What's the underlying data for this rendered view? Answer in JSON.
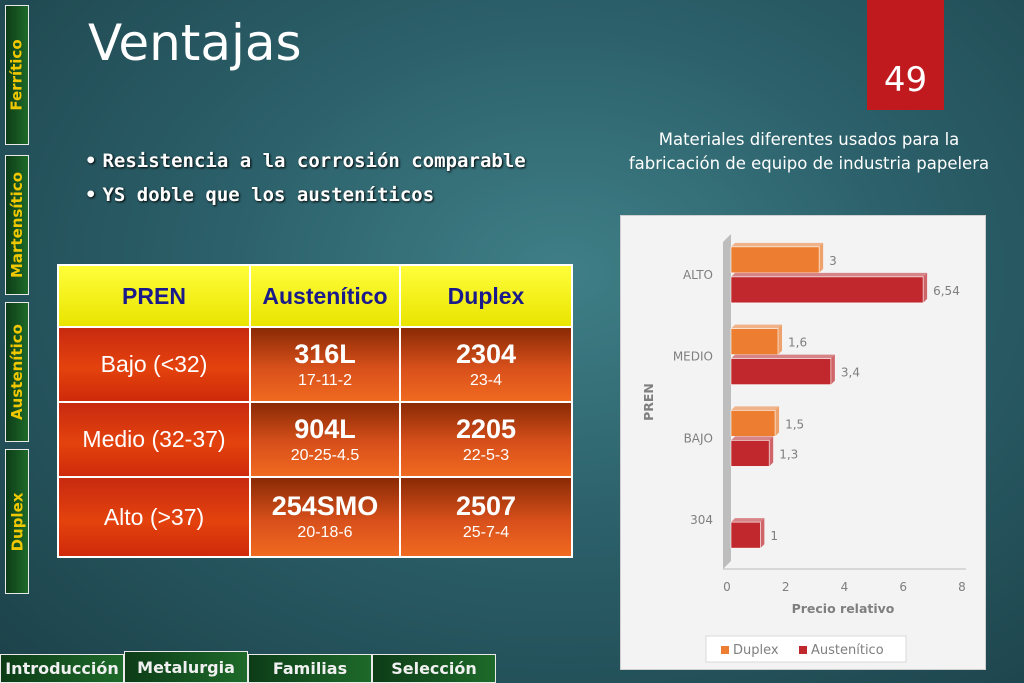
{
  "side_tabs": [
    "Ferrítico",
    "Martensítico",
    "Austenítico",
    "Duplex"
  ],
  "title": "Ventajas",
  "page_number": "49",
  "bullets": [
    "Resistencia a la corrosión comparable",
    "YS doble que los austeníticos"
  ],
  "bullet_char": "•",
  "table": {
    "headers": [
      "PREN",
      "Austenítico",
      "Duplex"
    ],
    "rows": [
      {
        "label": "Bajo (<32)",
        "aus_grade": "316L",
        "aus_comp": "17-11-2",
        "dup_grade": "2304",
        "dup_comp": "23-4"
      },
      {
        "label": "Medio (32-37)",
        "aus_grade": "904L",
        "aus_comp": "20-25-4.5",
        "dup_grade": "2205",
        "dup_comp": "22-5-3"
      },
      {
        "label": "Alto (>37)",
        "aus_grade": "254SMO",
        "aus_comp": "20-18-6",
        "dup_grade": "2507",
        "dup_comp": "25-7-4"
      }
    ]
  },
  "chart_caption": "Materiales diferentes usados para la fabricación de equipo de industria papelera",
  "chart_data": {
    "type": "bar",
    "orientation": "horizontal",
    "categories": [
      "ALTO",
      "MEDIO",
      "BAJO",
      "304"
    ],
    "series": [
      {
        "name": "Duplex",
        "values": [
          3,
          1.6,
          1.5,
          null
        ],
        "labels": [
          "3",
          "1,6",
          "1,5",
          ""
        ],
        "color": "#ed7d31"
      },
      {
        "name": "Austenítico",
        "values": [
          6.54,
          3.4,
          1.3,
          1
        ],
        "labels": [
          "6,54",
          "3,4",
          "1,3",
          "1"
        ],
        "color": "#c0282e"
      }
    ],
    "xlabel": "Precio relativo",
    "ylabel": "PREN",
    "xlim": [
      0,
      8
    ],
    "xticks": [
      "0",
      "2",
      "4",
      "6",
      "8"
    ],
    "legend": "bottom",
    "grid": false
  },
  "nav": [
    "Introducción",
    "Metalurgia",
    "Familias",
    "Selección"
  ],
  "colors": {
    "accent_red": "#c0191e",
    "tab_green": "#1e6a2a",
    "tab_text": "#f0c800"
  }
}
